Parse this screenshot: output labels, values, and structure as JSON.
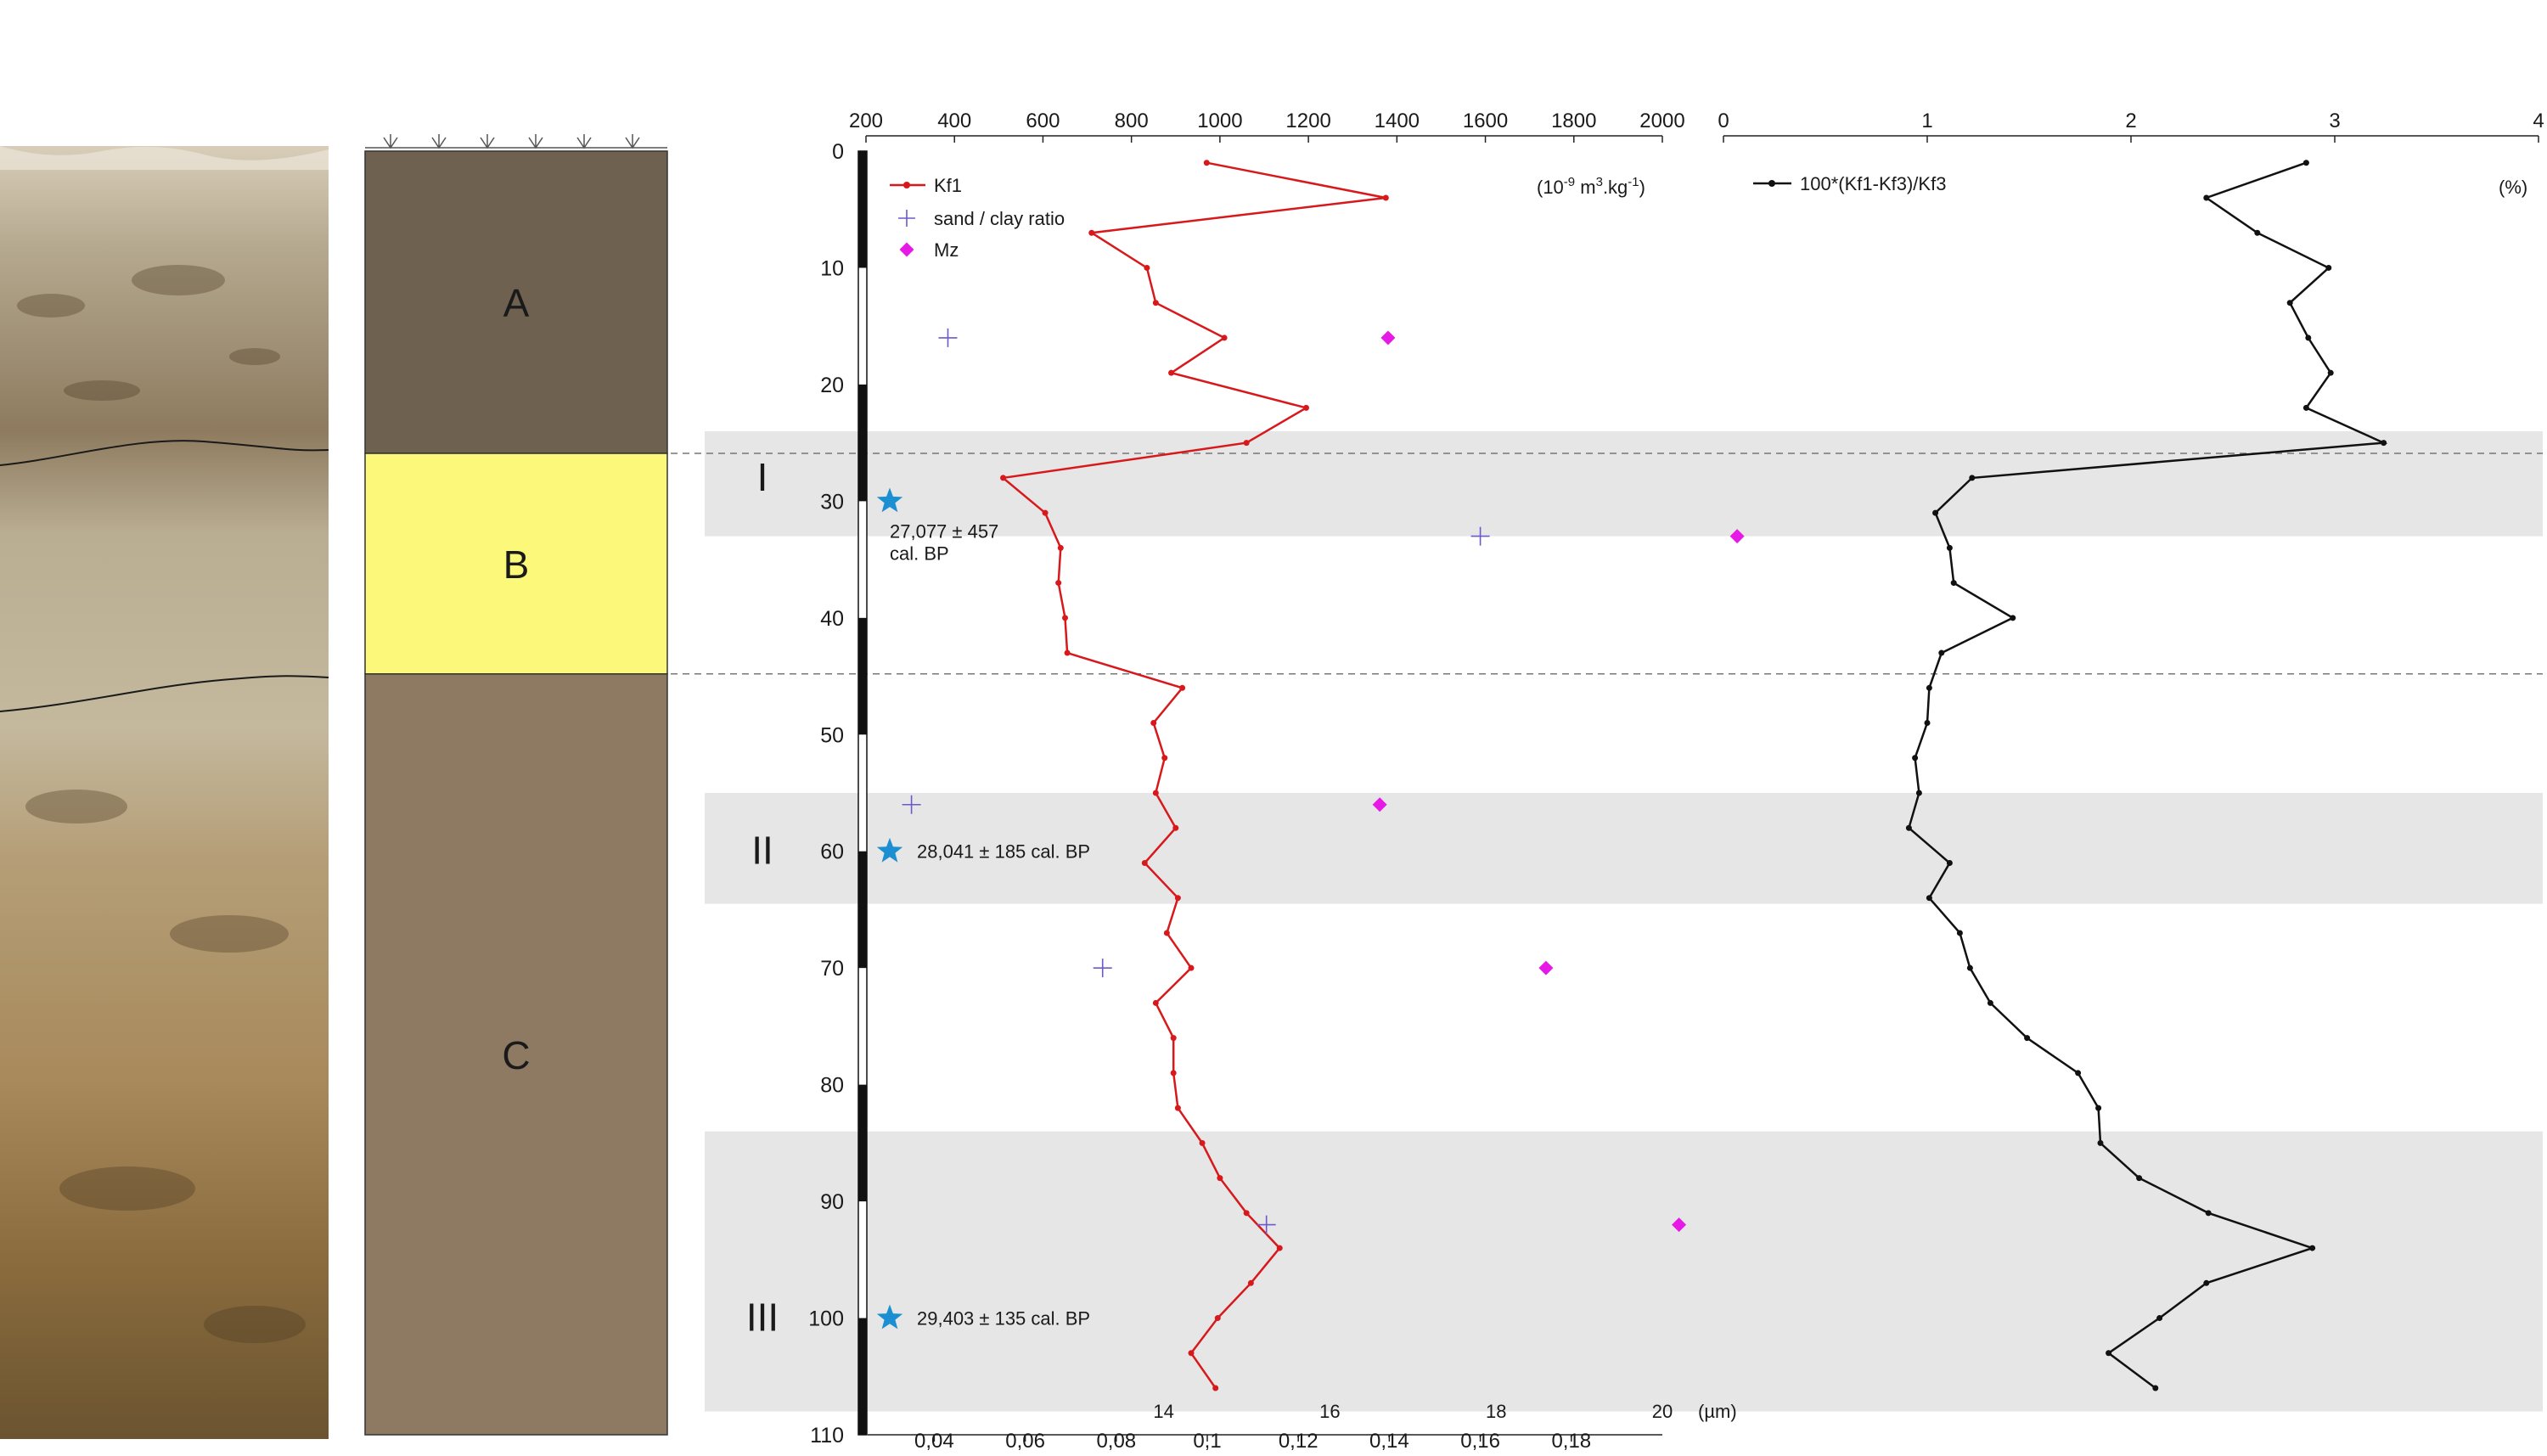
{
  "figure": {
    "horizons": [
      "A",
      "B",
      "C"
    ],
    "phases": [
      "I",
      "II",
      "III"
    ],
    "bands": [
      {
        "from": 24.0,
        "to": 33.0
      },
      {
        "from": 55.0,
        "to": 64.5
      },
      {
        "from": 84.0,
        "to": 108.0
      }
    ],
    "boundaries_depth": [
      25.9,
      44.8
    ],
    "dates": [
      {
        "depth": 30,
        "lines": [
          "27,077 ± 457",
          "cal. BP"
        ]
      },
      {
        "depth": 60,
        "lines": [
          "28,041 ± 185 cal. BP"
        ]
      },
      {
        "depth": 100,
        "lines": [
          "29,403 ± 135 cal. BP"
        ]
      }
    ],
    "colors": {
      "horizon_a": "#6e6150",
      "horizon_b": "#fbf87a",
      "horizon_c": "#8e7a62",
      "band": "#e6e6e6",
      "kf1": "#d7191c",
      "sand_clay": "#6a5acd",
      "mz": "#e619e6",
      "ratio": "#111111",
      "star": "#1b8fd2"
    }
  },
  "chart_data": [
    {
      "type": "line",
      "series_name": "Kf1",
      "unit": "(10-9 m3.kg-1)",
      "xlim": [
        200,
        2000
      ],
      "ylim": [
        0,
        110
      ],
      "x_ticks": [
        200,
        400,
        600,
        800,
        1000,
        1200,
        1400,
        1600,
        1800,
        2000
      ],
      "y_ticks": [
        0,
        10,
        20,
        30,
        40,
        50,
        60,
        70,
        80,
        90,
        100,
        110
      ],
      "points": [
        [
          970,
          1
        ],
        [
          1375,
          4
        ],
        [
          710,
          7
        ],
        [
          835,
          10
        ],
        [
          855,
          13
        ],
        [
          1010,
          16
        ],
        [
          890,
          19
        ],
        [
          1195,
          22
        ],
        [
          1060,
          25
        ],
        [
          510,
          28
        ],
        [
          605,
          31
        ],
        [
          640,
          34
        ],
        [
          635,
          37
        ],
        [
          650,
          40
        ],
        [
          655,
          43
        ],
        [
          915,
          46
        ],
        [
          850,
          49
        ],
        [
          875,
          52
        ],
        [
          855,
          55
        ],
        [
          900,
          58
        ],
        [
          830,
          61
        ],
        [
          905,
          64
        ],
        [
          880,
          67
        ],
        [
          935,
          70
        ],
        [
          855,
          73
        ],
        [
          895,
          76
        ],
        [
          895,
          79
        ],
        [
          905,
          82
        ],
        [
          960,
          85
        ],
        [
          1000,
          88
        ],
        [
          1060,
          91
        ],
        [
          1135,
          94
        ],
        [
          1070,
          97
        ],
        [
          995,
          100
        ],
        [
          935,
          103
        ],
        [
          990,
          106
        ]
      ]
    },
    {
      "type": "scatter",
      "series_name": "sand / clay ratio",
      "x_ticks": [
        "0,04",
        "0,06",
        "0,08",
        "0,1",
        "0,12",
        "0,14",
        "0,16",
        "0,18"
      ],
      "xlim": [
        0.025,
        0.2
      ],
      "points": [
        [
          0.043,
          16
        ],
        [
          0.16,
          33
        ],
        [
          0.035,
          56
        ],
        [
          0.077,
          70
        ],
        [
          0.113,
          92
        ]
      ]
    },
    {
      "type": "scatter",
      "series_name": "Mz",
      "x_ticks": [
        "14",
        "16",
        "18",
        "20"
      ],
      "x_unit": "(µm)",
      "xlim": [
        0,
        20
      ],
      "points": [
        [
          16.7,
          16
        ],
        [
          20.9,
          33
        ],
        [
          16.6,
          56
        ],
        [
          18.6,
          70
        ],
        [
          20.2,
          92
        ]
      ]
    },
    {
      "type": "line",
      "series_name": "100*(Kf1-Kf3)/Kf3",
      "unit": "(%)",
      "xlim": [
        0,
        4
      ],
      "ylim": [
        0,
        110
      ],
      "x_ticks": [
        "0",
        "1",
        "2",
        "3",
        "4"
      ],
      "points": [
        [
          2.86,
          1
        ],
        [
          2.37,
          4
        ],
        [
          2.62,
          7
        ],
        [
          2.97,
          10
        ],
        [
          2.78,
          13
        ],
        [
          2.87,
          16
        ],
        [
          2.98,
          19
        ],
        [
          2.86,
          22
        ],
        [
          3.24,
          25
        ],
        [
          1.22,
          28
        ],
        [
          1.04,
          31
        ],
        [
          1.11,
          34
        ],
        [
          1.13,
          37
        ],
        [
          1.42,
          40
        ],
        [
          1.07,
          43
        ],
        [
          1.01,
          46
        ],
        [
          1.0,
          49
        ],
        [
          0.94,
          52
        ],
        [
          0.96,
          55
        ],
        [
          0.91,
          58
        ],
        [
          1.11,
          61
        ],
        [
          1.01,
          64
        ],
        [
          1.16,
          67
        ],
        [
          1.21,
          70
        ],
        [
          1.31,
          73
        ],
        [
          1.49,
          76
        ],
        [
          1.74,
          79
        ],
        [
          1.84,
          82
        ],
        [
          1.85,
          85
        ],
        [
          2.04,
          88
        ],
        [
          2.38,
          91
        ],
        [
          2.89,
          94
        ],
        [
          2.37,
          97
        ],
        [
          2.14,
          100
        ],
        [
          1.89,
          103
        ],
        [
          2.12,
          106
        ]
      ]
    }
  ]
}
